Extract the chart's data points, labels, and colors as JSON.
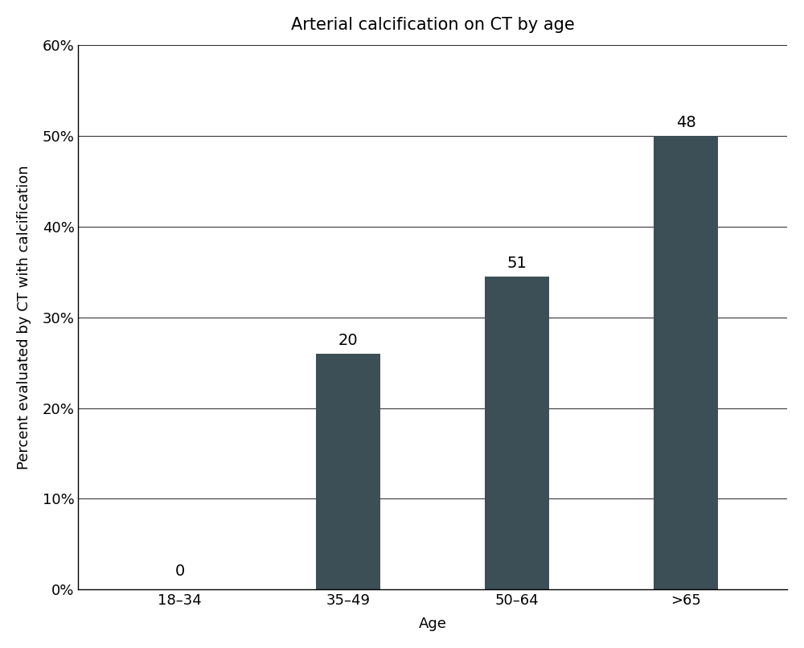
{
  "categories": [
    "18–34",
    "35–49",
    "50–64",
    ">65"
  ],
  "values": [
    0,
    26,
    34.5,
    50
  ],
  "labels": [
    "0",
    "20",
    "51",
    "48"
  ],
  "bar_color": "#3d4f56",
  "title": "Arterial calcification on CT by age",
  "xlabel": "Age",
  "ylabel": "Percent evaluated by CT with calcification",
  "ylim": [
    0,
    0.6
  ],
  "yticks": [
    0.0,
    0.1,
    0.2,
    0.3,
    0.4,
    0.5,
    0.6
  ],
  "title_fontsize": 15,
  "label_fontsize": 13,
  "tick_fontsize": 13,
  "annotation_fontsize": 14,
  "background_color": "#ffffff"
}
